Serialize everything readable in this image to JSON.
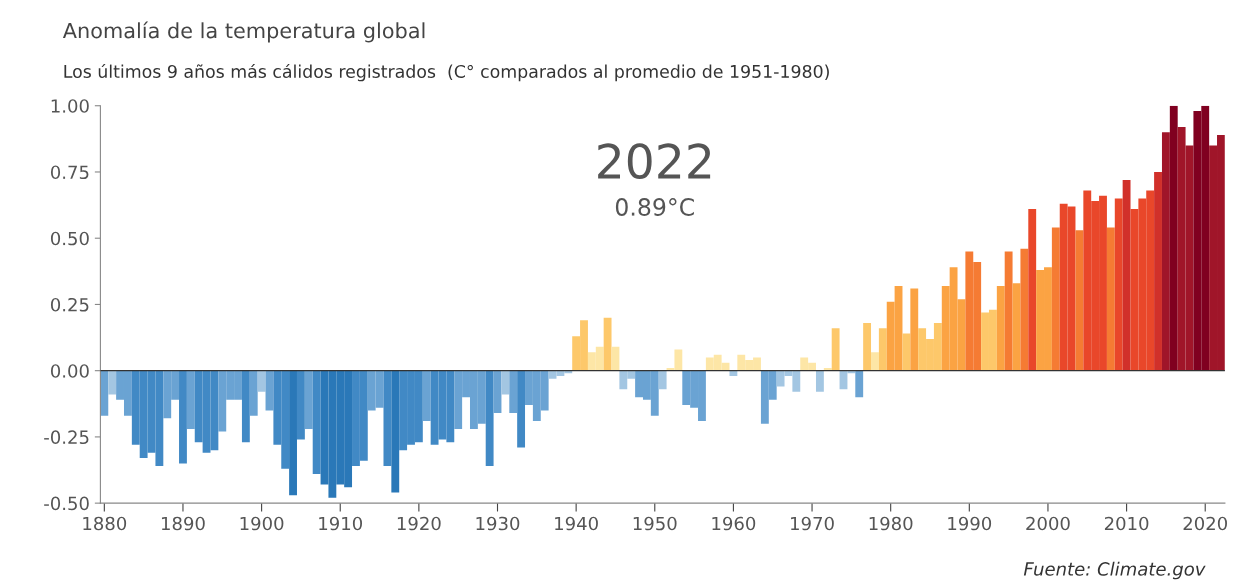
{
  "chart_data": {
    "type": "bar",
    "title": "Anomalía de la temperatura global",
    "subtitle": "Los últimos 9 años más cálidos registrados  (C° comparados al promedio de 1951-1980)",
    "annotations": [
      "2022",
      "0.89°C",
      "Fuente: Climate.gov"
    ],
    "x": [
      1880,
      1881,
      1882,
      1883,
      1884,
      1885,
      1886,
      1887,
      1888,
      1889,
      1890,
      1891,
      1892,
      1893,
      1894,
      1895,
      1896,
      1897,
      1898,
      1899,
      1900,
      1901,
      1902,
      1903,
      1904,
      1905,
      1906,
      1907,
      1908,
      1909,
      1910,
      1911,
      1912,
      1913,
      1914,
      1915,
      1916,
      1917,
      1918,
      1919,
      1920,
      1921,
      1922,
      1923,
      1924,
      1925,
      1926,
      1927,
      1928,
      1929,
      1930,
      1931,
      1932,
      1933,
      1934,
      1935,
      1936,
      1937,
      1938,
      1939,
      1940,
      1941,
      1942,
      1943,
      1944,
      1945,
      1946,
      1947,
      1948,
      1949,
      1950,
      1951,
      1952,
      1953,
      1954,
      1955,
      1956,
      1957,
      1958,
      1959,
      1960,
      1961,
      1962,
      1963,
      1964,
      1965,
      1966,
      1967,
      1968,
      1969,
      1970,
      1971,
      1972,
      1973,
      1974,
      1975,
      1976,
      1977,
      1978,
      1979,
      1980,
      1981,
      1982,
      1983,
      1984,
      1985,
      1986,
      1987,
      1988,
      1989,
      1990,
      1991,
      1992,
      1993,
      1994,
      1995,
      1996,
      1997,
      1998,
      1999,
      2000,
      2001,
      2002,
      2003,
      2004,
      2005,
      2006,
      2007,
      2008,
      2009,
      2010,
      2011,
      2012,
      2013,
      2014,
      2015,
      2016,
      2017,
      2018,
      2019,
      2020,
      2021,
      2022
    ],
    "values": [
      -0.17,
      -0.09,
      -0.11,
      -0.17,
      -0.28,
      -0.33,
      -0.31,
      -0.36,
      -0.18,
      -0.11,
      -0.35,
      -0.22,
      -0.27,
      -0.31,
      -0.3,
      -0.23,
      -0.11,
      -0.11,
      -0.27,
      -0.17,
      -0.08,
      -0.15,
      -0.28,
      -0.37,
      -0.47,
      -0.26,
      -0.22,
      -0.39,
      -0.43,
      -0.48,
      -0.43,
      -0.44,
      -0.36,
      -0.34,
      -0.15,
      -0.14,
      -0.36,
      -0.46,
      -0.3,
      -0.28,
      -0.27,
      -0.19,
      -0.28,
      -0.26,
      -0.27,
      -0.22,
      -0.1,
      -0.22,
      -0.2,
      -0.36,
      -0.16,
      -0.09,
      -0.16,
      -0.29,
      -0.13,
      -0.19,
      -0.15,
      -0.03,
      -0.02,
      -0.01,
      0.13,
      0.19,
      0.07,
      0.09,
      0.2,
      0.09,
      -0.07,
      -0.03,
      -0.1,
      -0.11,
      -0.17,
      -0.07,
      0.01,
      0.08,
      -0.13,
      -0.14,
      -0.19,
      0.05,
      0.06,
      0.03,
      -0.02,
      0.06,
      0.04,
      0.05,
      -0.2,
      -0.11,
      -0.06,
      -0.02,
      -0.08,
      0.05,
      0.03,
      -0.08,
      0.01,
      0.16,
      -0.07,
      -0.01,
      -0.1,
      0.18,
      0.07,
      0.16,
      0.26,
      0.32,
      0.14,
      0.31,
      0.16,
      0.12,
      0.18,
      0.32,
      0.39,
      0.27,
      0.45,
      0.41,
      0.22,
      0.23,
      0.32,
      0.45,
      0.33,
      0.46,
      0.61,
      0.38,
      0.39,
      0.54,
      0.63,
      0.62,
      0.53,
      0.68,
      0.64,
      0.66,
      0.54,
      0.65,
      0.72,
      0.61,
      0.65,
      0.68,
      0.75,
      0.9,
      1.0,
      0.92,
      0.85,
      0.98,
      1.0,
      0.85,
      0.89
    ],
    "colors": [
      "#6aa3d3",
      "#a3c6e2",
      "#6aa3d3",
      "#6aa3d3",
      "#4189c5",
      "#4189c5",
      "#4189c5",
      "#4189c5",
      "#6aa3d3",
      "#6aa3d3",
      "#4189c5",
      "#6aa3d3",
      "#4189c5",
      "#4189c5",
      "#4189c5",
      "#6aa3d3",
      "#6aa3d3",
      "#6aa3d3",
      "#4189c5",
      "#6aa3d3",
      "#a3c6e2",
      "#6aa3d3",
      "#4189c5",
      "#4189c5",
      "#2a78b8",
      "#4189c5",
      "#6aa3d3",
      "#4189c5",
      "#2a78b8",
      "#2a78b8",
      "#2a78b8",
      "#2a78b8",
      "#4189c5",
      "#4189c5",
      "#6aa3d3",
      "#6aa3d3",
      "#4189c5",
      "#2a78b8",
      "#4189c5",
      "#4189c5",
      "#4189c5",
      "#6aa3d3",
      "#4189c5",
      "#4189c5",
      "#4189c5",
      "#6aa3d3",
      "#6aa3d3",
      "#6aa3d3",
      "#6aa3d3",
      "#4189c5",
      "#6aa3d3",
      "#a3c6e2",
      "#6aa3d3",
      "#4189c5",
      "#6aa3d3",
      "#6aa3d3",
      "#6aa3d3",
      "#a3c6e2",
      "#a3c6e2",
      "#a3c6e2",
      "#fdc86a",
      "#fdc86a",
      "#fde6a6",
      "#fde6a6",
      "#fdc86a",
      "#fde6a6",
      "#a3c6e2",
      "#a3c6e2",
      "#6aa3d3",
      "#6aa3d3",
      "#6aa3d3",
      "#a3c6e2",
      "#fde6a6",
      "#fde6a6",
      "#6aa3d3",
      "#6aa3d3",
      "#6aa3d3",
      "#fde6a6",
      "#fde6a6",
      "#fde6a6",
      "#a3c6e2",
      "#fde6a6",
      "#fde6a6",
      "#fde6a6",
      "#6aa3d3",
      "#6aa3d3",
      "#a3c6e2",
      "#a3c6e2",
      "#a3c6e2",
      "#fde6a6",
      "#fde6a6",
      "#a3c6e2",
      "#fde6a6",
      "#fdc86a",
      "#a3c6e2",
      "#a3c6e2",
      "#6aa3d3",
      "#fdc86a",
      "#fde6a6",
      "#fdc86a",
      "#fba343",
      "#fba343",
      "#fdc86a",
      "#fba343",
      "#fdc86a",
      "#fdc86a",
      "#fdc86a",
      "#fba343",
      "#fba343",
      "#fba343",
      "#f57b33",
      "#f57b33",
      "#fdc86a",
      "#fdc86a",
      "#fba343",
      "#f57b33",
      "#fba343",
      "#f57b33",
      "#e9472a",
      "#fba343",
      "#fba343",
      "#f57b33",
      "#e9472a",
      "#e9472a",
      "#f57b33",
      "#e9472a",
      "#e9472a",
      "#e9472a",
      "#f57b33",
      "#e9472a",
      "#d1302a",
      "#e9472a",
      "#e9472a",
      "#e9472a",
      "#d1302a",
      "#a01529",
      "#800020",
      "#a01529",
      "#a01529",
      "#800020",
      "#800020",
      "#a01529",
      "#a01529"
    ],
    "xlim": [
      1879.5,
      2022.5
    ],
    "xticks": [
      1880,
      1890,
      1900,
      1910,
      1920,
      1930,
      1940,
      1950,
      1960,
      1970,
      1980,
      1990,
      2000,
      2010,
      2020
    ],
    "ylim": [
      -0.5,
      1.0
    ],
    "yticks": [
      {
        "value": -0.5,
        "label": "-0.50"
      },
      {
        "value": -0.25,
        "label": "-0.25"
      },
      {
        "value": 0,
        "label": "0.00"
      },
      {
        "value": 0.25,
        "label": "0.25"
      },
      {
        "value": 0.5,
        "label": "0.50"
      },
      {
        "value": 0.75,
        "label": "0.75"
      },
      {
        "value": 1.0,
        "label": "1.00"
      }
    ],
    "ref_lines": [
      {
        "axis": "y",
        "value": 0,
        "color": "#333333"
      }
    ],
    "grid": false,
    "legend": false
  }
}
